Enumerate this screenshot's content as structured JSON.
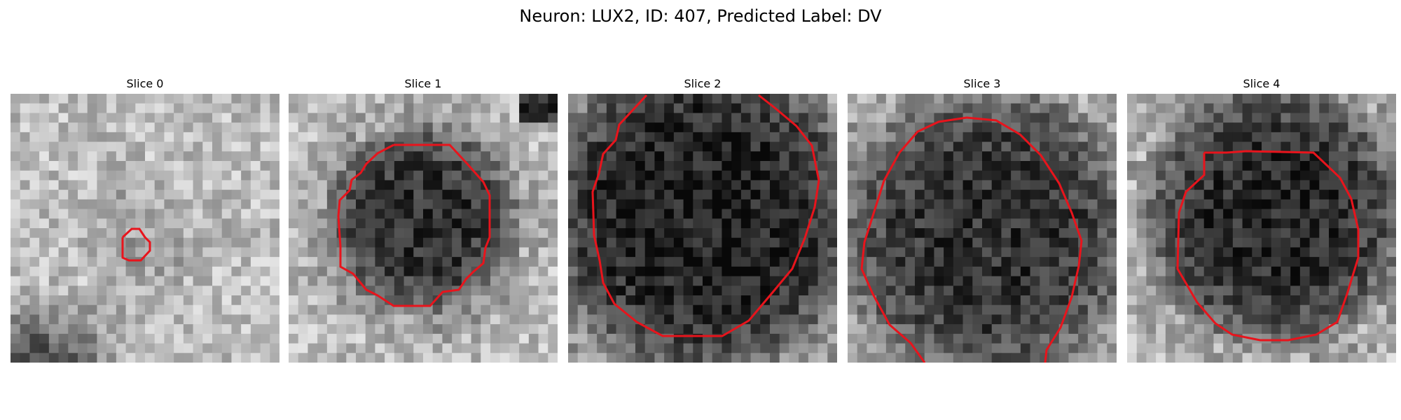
{
  "figure": {
    "title": "Neuron: LUX2, ID: 407, Predicted Label: DV"
  },
  "panels": [
    {
      "title": "Slice 0",
      "dark_center": [
        0.47,
        0.55
      ],
      "dark_radius": 0.25,
      "dark_strength": 0.1,
      "corner_dark": "bottom-left",
      "seed": 11
    },
    {
      "title": "Slice 1",
      "dark_center": [
        0.5,
        0.47
      ],
      "dark_radius": 0.4,
      "dark_strength": 0.55,
      "corner_dark": "top-right",
      "seed": 23
    },
    {
      "title": "Slice 2",
      "dark_center": [
        0.5,
        0.45
      ],
      "dark_radius": 0.68,
      "dark_strength": 0.62,
      "corner_dark": "",
      "seed": 37
    },
    {
      "title": "Slice 3",
      "dark_center": [
        0.52,
        0.52
      ],
      "dark_radius": 0.62,
      "dark_strength": 0.55,
      "corner_dark": "",
      "seed": 41
    },
    {
      "title": "Slice 4",
      "dark_center": [
        0.55,
        0.45
      ],
      "dark_radius": 0.55,
      "dark_strength": 0.58,
      "corner_dark": "",
      "seed": 53
    }
  ],
  "colors": {
    "contour": "#e8141c"
  }
}
